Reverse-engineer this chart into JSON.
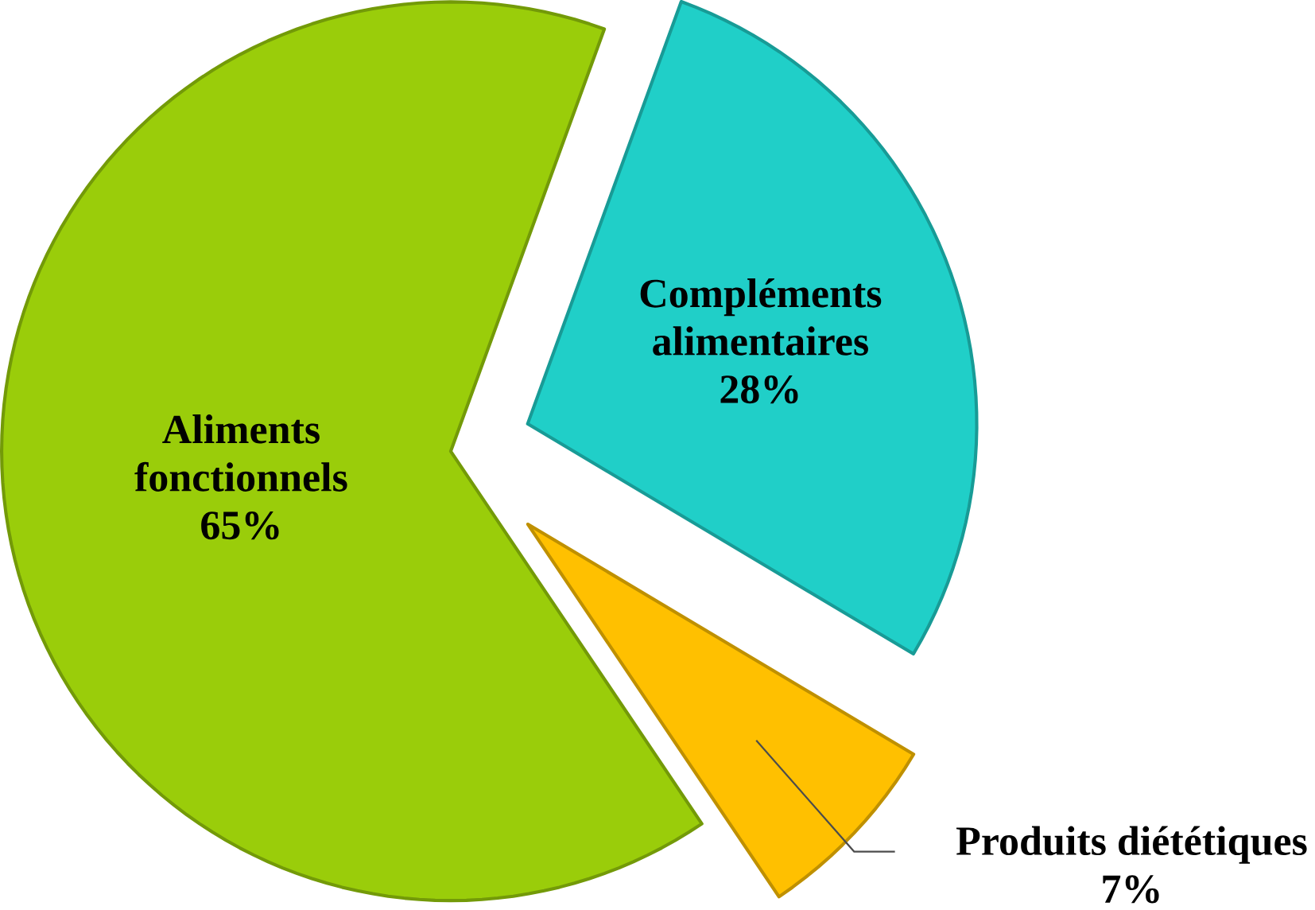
{
  "chart_data": {
    "type": "pie",
    "categories": [
      "Aliments fonctionnels",
      "Compléments alimentaires",
      "Produits diététiques"
    ],
    "values": [
      65,
      28,
      7
    ],
    "value_labels": [
      "65%",
      "28%",
      "7%"
    ],
    "colors": [
      "#9acd0a",
      "#20cfc8",
      "#ffc000"
    ]
  }
}
